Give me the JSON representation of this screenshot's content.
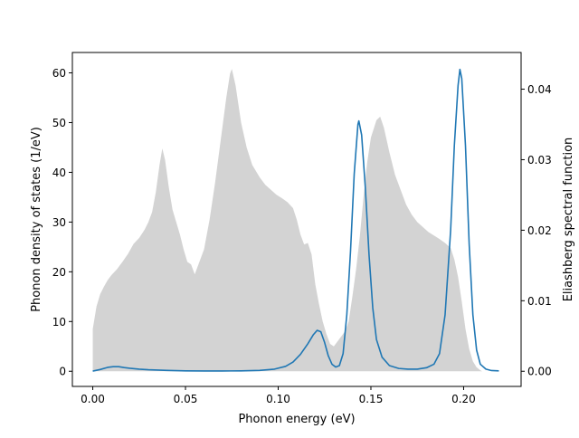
{
  "chart_data": {
    "type": "area",
    "xlabel": "Phonon energy (eV)",
    "ylabel": "Phonon density of states (1/eV)",
    "y2label": "Eliashberg spectral function",
    "xlim": [
      -0.011,
      0.231
    ],
    "ylim": [
      -3.05,
      64.1
    ],
    "y2lim": [
      -0.00215,
      0.0452
    ],
    "xticks": [
      0.0,
      0.05,
      0.1,
      0.15,
      0.2
    ],
    "xtick_labels": [
      "0.00",
      "0.05",
      "0.10",
      "0.15",
      "0.20"
    ],
    "yticks": [
      0,
      10,
      20,
      30,
      40,
      50,
      60
    ],
    "ytick_labels": [
      "0",
      "10",
      "20",
      "30",
      "40",
      "50",
      "60"
    ],
    "y2ticks": [
      0.0,
      0.01,
      0.02,
      0.03,
      0.04
    ],
    "y2tick_labels": [
      "0.00",
      "0.01",
      "0.02",
      "0.03",
      "0.04"
    ],
    "grid": false,
    "series": [
      {
        "axis": "left",
        "style": "filled area",
        "color": "#d3d3d3",
        "points": [
          [
            0.0,
            0
          ],
          [
            0.0,
            8.5
          ],
          [
            0.002,
            13.0
          ],
          [
            0.004,
            15.5
          ],
          [
            0.006,
            17.0
          ],
          [
            0.008,
            18.3
          ],
          [
            0.01,
            19.3
          ],
          [
            0.013,
            20.5
          ],
          [
            0.016,
            22.0
          ],
          [
            0.019,
            23.6
          ],
          [
            0.022,
            25.6
          ],
          [
            0.025,
            26.8
          ],
          [
            0.028,
            28.5
          ],
          [
            0.03,
            30.0
          ],
          [
            0.032,
            32.0
          ],
          [
            0.034,
            36.0
          ],
          [
            0.036,
            41.5
          ],
          [
            0.0375,
            44.8
          ],
          [
            0.039,
            42.5
          ],
          [
            0.041,
            37.0
          ],
          [
            0.043,
            32.5
          ],
          [
            0.045,
            30.0
          ],
          [
            0.047,
            27.5
          ],
          [
            0.049,
            24.5
          ],
          [
            0.051,
            22.0
          ],
          [
            0.053,
            21.5
          ],
          [
            0.055,
            19.5
          ],
          [
            0.057,
            21.5
          ],
          [
            0.06,
            24.5
          ],
          [
            0.063,
            30.5
          ],
          [
            0.066,
            38.0
          ],
          [
            0.069,
            46.5
          ],
          [
            0.072,
            55.0
          ],
          [
            0.074,
            59.8
          ],
          [
            0.075,
            60.8
          ],
          [
            0.077,
            57.5
          ],
          [
            0.08,
            50.0
          ],
          [
            0.083,
            45.0
          ],
          [
            0.086,
            41.5
          ],
          [
            0.09,
            39.0
          ],
          [
            0.093,
            37.5
          ],
          [
            0.096,
            36.5
          ],
          [
            0.099,
            35.5
          ],
          [
            0.102,
            34.8
          ],
          [
            0.105,
            34.0
          ],
          [
            0.108,
            32.8
          ],
          [
            0.11,
            30.5
          ],
          [
            0.112,
            27.5
          ],
          [
            0.114,
            25.5
          ],
          [
            0.116,
            25.8
          ],
          [
            0.118,
            23.5
          ],
          [
            0.12,
            17.5
          ],
          [
            0.122,
            13.5
          ],
          [
            0.124,
            10.0
          ],
          [
            0.126,
            7.5
          ],
          [
            0.128,
            5.5
          ],
          [
            0.13,
            5.0
          ],
          [
            0.133,
            6.5
          ],
          [
            0.136,
            8.0
          ],
          [
            0.138,
            10.0
          ],
          [
            0.14,
            15.0
          ],
          [
            0.142,
            20.5
          ],
          [
            0.144,
            27.0
          ],
          [
            0.146,
            35.0
          ],
          [
            0.148,
            42.0
          ],
          [
            0.15,
            47.0
          ],
          [
            0.153,
            50.5
          ],
          [
            0.155,
            51.2
          ],
          [
            0.157,
            49.0
          ],
          [
            0.16,
            44.0
          ],
          [
            0.163,
            39.5
          ],
          [
            0.166,
            36.5
          ],
          [
            0.169,
            33.5
          ],
          [
            0.172,
            31.5
          ],
          [
            0.175,
            30.0
          ],
          [
            0.178,
            29.0
          ],
          [
            0.181,
            28.0
          ],
          [
            0.184,
            27.3
          ],
          [
            0.187,
            26.6
          ],
          [
            0.19,
            25.8
          ],
          [
            0.193,
            24.8
          ],
          [
            0.195,
            22.5
          ],
          [
            0.197,
            19.0
          ],
          [
            0.199,
            14.0
          ],
          [
            0.201,
            8.5
          ],
          [
            0.203,
            4.5
          ],
          [
            0.205,
            2.0
          ],
          [
            0.207,
            0.8
          ],
          [
            0.209,
            0.2
          ],
          [
            0.21,
            0
          ]
        ]
      },
      {
        "axis": "right",
        "style": "line",
        "color": "#1f77b4",
        "points": [
          [
            0.0,
            2e-05
          ],
          [
            0.004,
            0.00025
          ],
          [
            0.008,
            0.00055
          ],
          [
            0.011,
            0.00065
          ],
          [
            0.014,
            0.00065
          ],
          [
            0.017,
            0.00052
          ],
          [
            0.02,
            0.00042
          ],
          [
            0.025,
            0.0003
          ],
          [
            0.03,
            0.00022
          ],
          [
            0.04,
            0.00012
          ],
          [
            0.05,
            6e-05
          ],
          [
            0.06,
            4e-05
          ],
          [
            0.07,
            4e-05
          ],
          [
            0.08,
            6e-05
          ],
          [
            0.09,
            0.00012
          ],
          [
            0.098,
            0.0003
          ],
          [
            0.104,
            0.0007
          ],
          [
            0.108,
            0.0013
          ],
          [
            0.112,
            0.0024
          ],
          [
            0.116,
            0.0039
          ],
          [
            0.119,
            0.0052
          ],
          [
            0.121,
            0.0058
          ],
          [
            0.123,
            0.0056
          ],
          [
            0.125,
            0.0041
          ],
          [
            0.127,
            0.0022
          ],
          [
            0.129,
            0.001
          ],
          [
            0.131,
            0.0006
          ],
          [
            0.133,
            0.0008
          ],
          [
            0.135,
            0.0025
          ],
          [
            0.137,
            0.008
          ],
          [
            0.139,
            0.017
          ],
          [
            0.141,
            0.028
          ],
          [
            0.143,
            0.035
          ],
          [
            0.1435,
            0.0355
          ],
          [
            0.145,
            0.0335
          ],
          [
            0.147,
            0.026
          ],
          [
            0.149,
            0.0165
          ],
          [
            0.151,
            0.009
          ],
          [
            0.153,
            0.0045
          ],
          [
            0.156,
            0.002
          ],
          [
            0.16,
            0.0008
          ],
          [
            0.165,
            0.0004
          ],
          [
            0.17,
            0.0003
          ],
          [
            0.175,
            0.0003
          ],
          [
            0.18,
            0.0005
          ],
          [
            0.184,
            0.001
          ],
          [
            0.187,
            0.0025
          ],
          [
            0.19,
            0.008
          ],
          [
            0.193,
            0.02
          ],
          [
            0.195,
            0.032
          ],
          [
            0.197,
            0.0405
          ],
          [
            0.198,
            0.0428
          ],
          [
            0.199,
            0.0415
          ],
          [
            0.201,
            0.032
          ],
          [
            0.203,
            0.018
          ],
          [
            0.205,
            0.008
          ],
          [
            0.207,
            0.003
          ],
          [
            0.209,
            0.001
          ],
          [
            0.212,
            0.0003
          ],
          [
            0.215,
            0.0001
          ],
          [
            0.219,
            5e-05
          ]
        ]
      }
    ]
  }
}
